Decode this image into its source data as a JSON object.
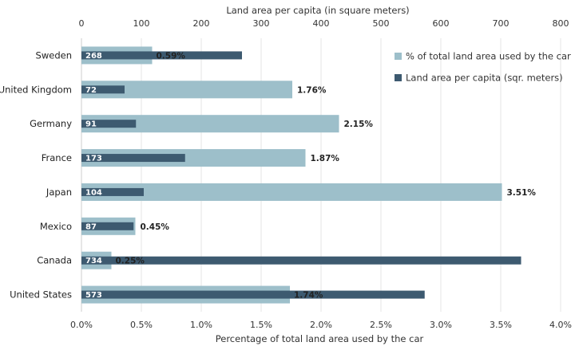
{
  "chart_data": {
    "type": "bar",
    "categories": [
      "Sweden",
      "United Kingdom",
      "Germany",
      "France",
      "Japan",
      "Mexico",
      "Canada",
      "United States"
    ],
    "series": [
      {
        "name": "% of total land area used by the car",
        "axis": "bottom",
        "unit": "%",
        "values": [
          0.59,
          1.76,
          2.15,
          1.87,
          3.51,
          0.45,
          0.25,
          1.74
        ],
        "labels": [
          "0.59%",
          "1.76%",
          "2.15%",
          "1.87%",
          "3.51%",
          "0.45%",
          "0.25%",
          "1.74%"
        ],
        "color": "#9dbfca"
      },
      {
        "name": "Land area per capita (sqr. meters)",
        "axis": "top",
        "values": [
          268,
          72,
          91,
          173,
          104,
          87,
          734,
          573
        ],
        "labels": [
          "268",
          "72",
          "91",
          "173",
          "104",
          "87",
          "734",
          "573"
        ],
        "color": "#3d5a70"
      }
    ],
    "x_bottom": {
      "label": "Percentage of total land area used by the car",
      "range": [
        0,
        4.0
      ],
      "ticks": [
        "0.0%",
        "0.5%",
        "1.0%",
        "1.5%",
        "2.0%",
        "2.5%",
        "3.0%",
        "3.5%",
        "4.0%"
      ]
    },
    "x_top": {
      "label": "Land area per capita  (in square meters)",
      "range": [
        0,
        800
      ],
      "ticks": [
        "0",
        "100",
        "200",
        "300",
        "400",
        "500",
        "600",
        "700",
        "800"
      ]
    },
    "legend_position": "top-right",
    "grid": true
  }
}
